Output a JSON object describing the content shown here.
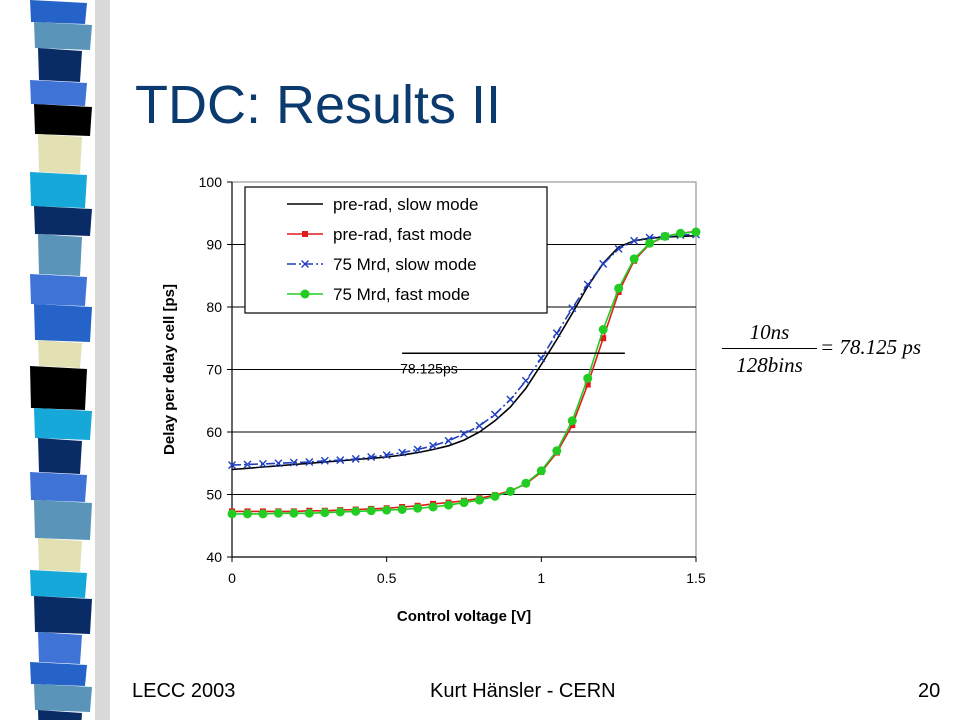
{
  "slide": {
    "title": "TDC: Results II",
    "footer_left": "LECC 2003",
    "footer_center": "Kurt Hänsler - CERN",
    "page_number": "20"
  },
  "formula": {
    "numerator": "10ns",
    "denominator": "128bins",
    "result": "= 78.125 ps"
  },
  "colors": {
    "title": "#0b3a6e",
    "strip": [
      "#2563c9",
      "#5a94b8",
      "#0a2c66",
      "#3f74d6",
      "#000000",
      "#e3e1b3",
      "#15a8d8"
    ]
  },
  "chart_data": {
    "type": "line",
    "title": "",
    "xlabel": "Control voltage [V]",
    "ylabel": "Delay per delay cell [ps]",
    "xlim": [
      0,
      1.5
    ],
    "ylim": [
      40,
      100
    ],
    "xticks": [
      0,
      0.5,
      1,
      1.5
    ],
    "xtick_labels": [
      "0",
      "0.5",
      "1",
      "1.5"
    ],
    "yticks": [
      40,
      50,
      60,
      70,
      80,
      90,
      100
    ],
    "ytick_labels": [
      "40",
      "50",
      "60",
      "70",
      "80",
      "90",
      "100"
    ],
    "grid": "horizontal",
    "legend": "top-left",
    "x": [
      0,
      0.05,
      0.1,
      0.15,
      0.2,
      0.25,
      0.3,
      0.35,
      0.4,
      0.45,
      0.5,
      0.55,
      0.6,
      0.65,
      0.7,
      0.75,
      0.8,
      0.85,
      0.9,
      0.95,
      1.0,
      1.05,
      1.1,
      1.15,
      1.2,
      1.25,
      1.3,
      1.35,
      1.4,
      1.45,
      1.5
    ],
    "series": [
      {
        "name": "pre-rad, slow mode",
        "color": "#000000",
        "dash": "solid",
        "marker": "none",
        "values": [
          54.0,
          54.2,
          54.4,
          54.6,
          54.8,
          55.0,
          55.2,
          55.4,
          55.6,
          55.8,
          56.0,
          56.3,
          56.7,
          57.2,
          57.8,
          58.7,
          60.0,
          61.8,
          64.0,
          67.0,
          70.8,
          74.8,
          79.0,
          83.3,
          87.0,
          89.6,
          90.6,
          91.0,
          91.2,
          91.3,
          91.4
        ]
      },
      {
        "name": "pre-rad, fast mode",
        "color": "#e31a1c",
        "dash": "solid",
        "marker": "square",
        "values": [
          47.3,
          47.3,
          47.3,
          47.3,
          47.3,
          47.4,
          47.4,
          47.5,
          47.6,
          47.7,
          47.8,
          48.0,
          48.2,
          48.5,
          48.7,
          49.0,
          49.4,
          49.9,
          50.6,
          51.7,
          53.6,
          56.7,
          61.1,
          67.6,
          75.0,
          82.4,
          87.4,
          90.1,
          91.3,
          91.8,
          92.1
        ]
      },
      {
        "name": "75 Mrd, slow mode",
        "color": "#1f3fbf",
        "dash": "dashdot",
        "marker": "x",
        "values": [
          54.7,
          54.8,
          54.9,
          55.0,
          55.1,
          55.2,
          55.4,
          55.5,
          55.7,
          56.0,
          56.3,
          56.7,
          57.2,
          57.8,
          58.6,
          59.7,
          61.0,
          62.8,
          65.2,
          68.2,
          71.8,
          75.8,
          79.8,
          83.6,
          86.9,
          89.3,
          90.6,
          91.1,
          91.3,
          91.5,
          91.6
        ]
      },
      {
        "name": "75 Mrd, fast mode",
        "color": "#22cc22",
        "dash": "solid",
        "marker": "circle",
        "values": [
          46.9,
          46.9,
          46.9,
          47.0,
          47.0,
          47.0,
          47.1,
          47.2,
          47.3,
          47.4,
          47.5,
          47.6,
          47.8,
          48.0,
          48.3,
          48.7,
          49.1,
          49.7,
          50.5,
          51.8,
          53.8,
          57.0,
          61.8,
          68.6,
          76.4,
          83.0,
          87.7,
          90.2,
          91.3,
          91.8,
          92.0
        ]
      }
    ],
    "annotations": [
      {
        "text": "78.125ps",
        "x_start": 0.55,
        "x_end": 1.27,
        "y": 72.6
      }
    ]
  }
}
